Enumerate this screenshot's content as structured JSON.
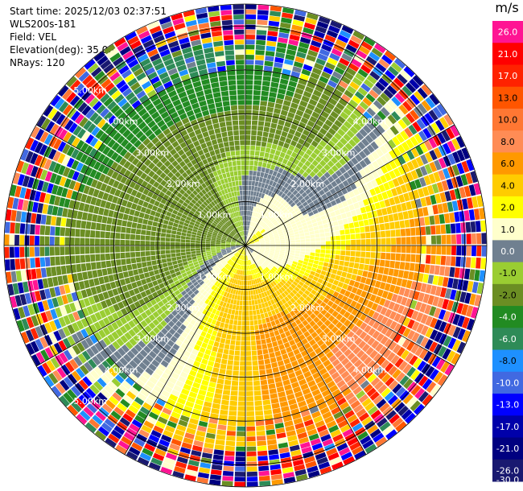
{
  "header": {
    "start_time": "Start time: 2025/12/03 02:37:51",
    "instrument": "WLS200s-181",
    "field": "Field: VEL",
    "elevation": "Elevation(deg): 35.00",
    "nrays": "NRays: 120"
  },
  "chart_data": {
    "type": "heatmap",
    "projection": "polar-ppi",
    "field": "VEL",
    "unit": "m/s",
    "n_rays": 120,
    "elevation_deg": 35.0,
    "max_range_km": 5.5,
    "range_rings_km": [
      1,
      2,
      3,
      4,
      5
    ],
    "ring_labels": [
      "1.00km",
      "2.00km",
      "3.00km",
      "4.00km",
      "5.00km"
    ],
    "radial_lines_deg": [
      0,
      30,
      60,
      90,
      120,
      150,
      180,
      210,
      240,
      270,
      300,
      330
    ],
    "colorbar": {
      "ticks": [
        "26.0",
        "21.0",
        "17.0",
        "13.0",
        "10.0",
        "8.0",
        "6.0",
        "4.0",
        "2.0",
        "1.0",
        "0.0",
        "-1.0",
        "-2.0",
        "-4.0",
        "-6.0",
        "-8.0",
        "-10.0",
        "-13.0",
        "-17.0",
        "-21.0",
        "-26.0",
        "-30.0"
      ],
      "bin_colors": [
        "#ff1493",
        "#ff0000",
        "#ff2200",
        "#ff5500",
        "#ff7733",
        "#ff8c55",
        "#ff9900",
        "#ffcc00",
        "#ffff00",
        "#ffffcc",
        "#708090",
        "#9acd32",
        "#6b8e23",
        "#228b22",
        "#2e8b57",
        "#1e90ff",
        "#4169e1",
        "#0000ff",
        "#0000aa",
        "#000080",
        "#191970"
      ]
    }
  }
}
